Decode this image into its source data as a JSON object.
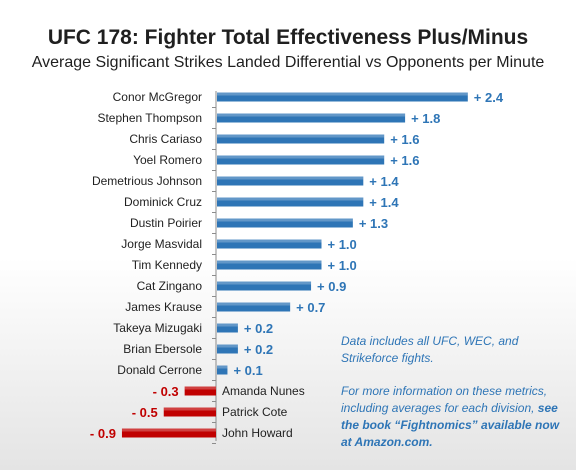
{
  "title": "UFC 178: Fighter Total Effectiveness Plus/Minus",
  "subtitle": "Average Significant Strikes Landed Differential vs Opponents per Minute",
  "notes": {
    "note1": "Data includes all UFC, WEC, and Strikeforce fights.",
    "note2_plain": "For more information on these metrics, including averages for each division, ",
    "note2_bold": "see the book “Fightnomics” available now at Amazon.com."
  },
  "colors": {
    "positive_bar": "#2e75b6",
    "negative_bar": "#c00000",
    "positive_label": "#2e75b6",
    "negative_label": "#c00000",
    "axis": "#8c8c8c"
  },
  "chart_data": {
    "type": "bar",
    "orientation": "horizontal",
    "categories": [
      "Conor McGregor",
      "Stephen Thompson",
      "Chris Cariaso",
      "Yoel Romero",
      "Demetrious Johnson",
      "Dominick Cruz",
      "Dustin Poirier",
      "Jorge Masvidal",
      "Tim Kennedy",
      "Cat Zingano",
      "James Krause",
      "Takeya Mizugaki",
      "Brian Ebersole",
      "Donald Cerrone",
      "Amanda Nunes",
      "Patrick Cote",
      "John Howard"
    ],
    "values": [
      2.4,
      1.8,
      1.6,
      1.6,
      1.4,
      1.4,
      1.3,
      1.0,
      1.0,
      0.9,
      0.7,
      0.2,
      0.2,
      0.1,
      -0.3,
      -0.5,
      -0.9
    ],
    "data_labels": [
      "+ 2.4",
      "+ 1.8",
      "+ 1.6",
      "+ 1.6",
      "+ 1.4",
      "+ 1.4",
      "+ 1.3",
      "+ 1.0",
      "+ 1.0",
      "+ 0.9",
      "+ 0.7",
      "+ 0.2",
      "+ 0.2",
      "+ 0.1",
      "- 0.3",
      "- 0.5",
      "- 0.9"
    ],
    "xlim": [
      -0.9,
      2.4
    ],
    "grid": false,
    "legend": "none"
  }
}
